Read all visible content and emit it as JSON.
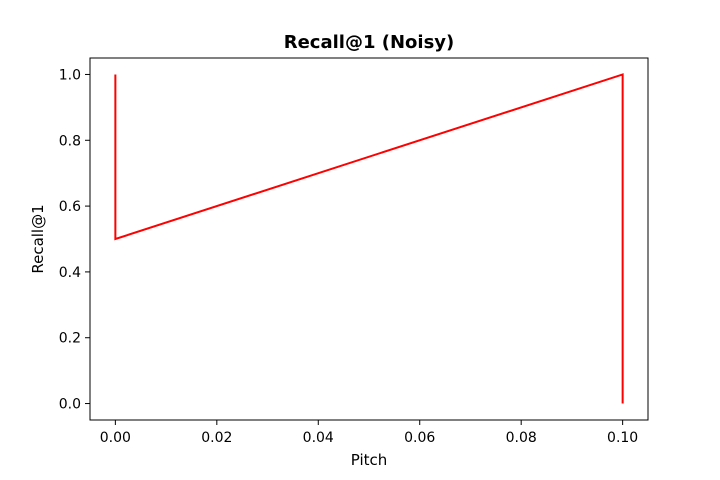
{
  "chart_data": {
    "type": "line",
    "title": "Recall@1 (Noisy)",
    "xlabel": "Pitch",
    "ylabel": "Recall@1",
    "xlim": [
      -0.005,
      0.105
    ],
    "ylim": [
      -0.05,
      1.05
    ],
    "x_ticks": [
      0.0,
      0.02,
      0.04,
      0.06,
      0.08,
      0.1
    ],
    "x_tick_labels": [
      "0.00",
      "0.02",
      "0.04",
      "0.06",
      "0.08",
      "0.10"
    ],
    "y_ticks": [
      0.0,
      0.2,
      0.4,
      0.6,
      0.8,
      1.0
    ],
    "y_tick_labels": [
      "0.0",
      "0.2",
      "0.4",
      "0.6",
      "0.8",
      "1.0"
    ],
    "grid": false,
    "series": [
      {
        "color": "#ff0000",
        "x": [
          0.0,
          0.0,
          0.1,
          0.1
        ],
        "y": [
          1.0,
          0.5,
          1.0,
          0.0
        ]
      }
    ]
  }
}
